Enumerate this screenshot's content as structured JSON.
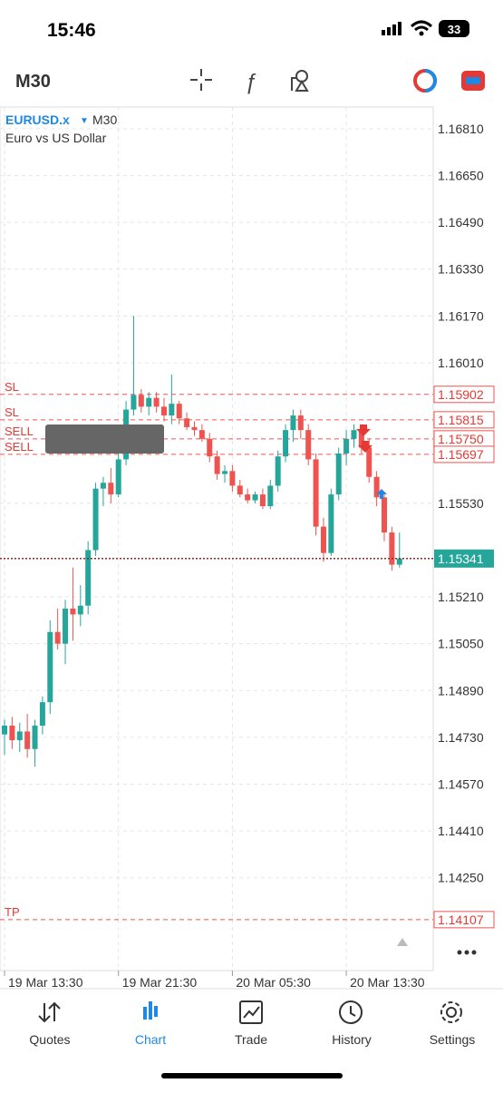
{
  "status_bar": {
    "time": "15:46",
    "battery": "33"
  },
  "toolbar": {
    "timeframe": "M30"
  },
  "chart_data": {
    "type": "candlestick",
    "symbol": "EURUSD.x",
    "timeframe": "M30",
    "description": "Euro vs US Dollar",
    "up_color": "#26a69a",
    "down_color": "#ef5350",
    "categories": [
      "19 Mar 13:30",
      null,
      null,
      null,
      null,
      null,
      null,
      null,
      null,
      null,
      null,
      null,
      null,
      null,
      null,
      "19 Mar 21:30",
      null,
      null,
      null,
      null,
      null,
      null,
      null,
      null,
      null,
      null,
      null,
      null,
      null,
      null,
      "20 Mar 05:30",
      null,
      null,
      null,
      null,
      null,
      null,
      null,
      null,
      null,
      null,
      null,
      null,
      null,
      null,
      "20 Mar 13:30",
      null,
      null,
      null,
      null,
      null,
      null,
      null
    ],
    "open": [
      1.1474,
      1.1477,
      1.1472,
      1.1475,
      1.1469,
      1.1477,
      1.1485,
      1.1509,
      1.1505,
      1.1517,
      1.1515,
      1.1518,
      1.1537,
      1.1558,
      1.156,
      1.1556,
      1.1568,
      1.1585,
      1.159,
      1.1586,
      1.1589,
      1.1586,
      1.1583,
      1.1587,
      1.1582,
      1.1579,
      1.1578,
      1.1575,
      1.1569,
      1.1563,
      1.1564,
      1.1559,
      1.1556,
      1.1554,
      1.1556,
      1.1552,
      1.1559,
      1.1569,
      1.1578,
      1.1583,
      1.1578,
      1.1568,
      1.1545,
      1.1536,
      1.1556,
      1.157,
      1.1575,
      1.1578,
      1.1572,
      1.1562,
      1.1555,
      1.1543,
      1.1532
    ],
    "high": [
      1.1479,
      1.148,
      1.1478,
      1.1481,
      1.1479,
      1.1487,
      1.1513,
      1.1517,
      1.152,
      1.1531,
      1.1525,
      1.154,
      1.156,
      1.1562,
      1.1565,
      1.1572,
      1.1588,
      1.1617,
      1.1592,
      1.1591,
      1.1591,
      1.1589,
      1.1597,
      1.1588,
      1.1584,
      1.1581,
      1.158,
      1.1577,
      1.1571,
      1.1566,
      1.1566,
      1.1561,
      1.1558,
      1.1557,
      1.1558,
      1.1561,
      1.1571,
      1.158,
      1.1585,
      1.1585,
      1.158,
      1.157,
      1.1548,
      1.1558,
      1.1572,
      1.1578,
      1.158,
      1.158,
      1.1575,
      1.1564,
      1.1557,
      1.1545,
      1.1543
    ],
    "low": [
      1.1467,
      1.1469,
      1.1468,
      1.1466,
      1.1463,
      1.1474,
      1.1481,
      1.1503,
      1.1498,
      1.1506,
      1.1511,
      1.1515,
      1.1535,
      1.1552,
      1.1553,
      1.1555,
      1.1566,
      1.1583,
      1.1584,
      1.1583,
      1.1584,
      1.1581,
      1.158,
      1.158,
      1.1578,
      1.1576,
      1.1574,
      1.1567,
      1.1561,
      1.156,
      1.1557,
      1.1555,
      1.1553,
      1.1553,
      1.1551,
      1.1551,
      1.1557,
      1.1567,
      1.1574,
      1.1575,
      1.1566,
      1.1542,
      1.1533,
      1.1535,
      1.1554,
      1.1566,
      1.1572,
      1.157,
      1.156,
      1.1552,
      1.154,
      1.153,
      1.1531
    ],
    "close": [
      1.1477,
      1.1472,
      1.1475,
      1.1469,
      1.1477,
      1.1485,
      1.1509,
      1.1505,
      1.1517,
      1.1515,
      1.1518,
      1.1537,
      1.1558,
      1.156,
      1.1556,
      1.1568,
      1.1585,
      1.159,
      1.1586,
      1.1589,
      1.1586,
      1.1583,
      1.1587,
      1.1582,
      1.1579,
      1.1578,
      1.1575,
      1.1569,
      1.1563,
      1.1564,
      1.1559,
      1.1556,
      1.1554,
      1.1556,
      1.1552,
      1.1559,
      1.1569,
      1.1578,
      1.1583,
      1.1578,
      1.1568,
      1.1545,
      1.1536,
      1.1556,
      1.157,
      1.1575,
      1.1578,
      1.1572,
      1.1562,
      1.1555,
      1.1543,
      1.1532,
      1.15341
    ],
    "ylim": [
      1.13933,
      1.16884
    ],
    "yticks": [
      {
        "value": 1.1681,
        "label": "1.16810"
      },
      {
        "value": 1.1665,
        "label": "1.16650"
      },
      {
        "value": 1.1649,
        "label": "1.16490"
      },
      {
        "value": 1.1633,
        "label": "1.16330"
      },
      {
        "value": 1.1617,
        "label": "1.16170"
      },
      {
        "value": 1.1601,
        "label": "1.16010"
      },
      {
        "value": 1.1553,
        "label": "1.15530"
      },
      {
        "value": 1.1521,
        "label": "1.15210"
      },
      {
        "value": 1.1505,
        "label": "1.15050"
      },
      {
        "value": 1.1489,
        "label": "1.14890"
      },
      {
        "value": 1.1473,
        "label": "1.14730"
      },
      {
        "value": 1.1457,
        "label": "1.14570"
      },
      {
        "value": 1.1441,
        "label": "1.14410"
      },
      {
        "value": 1.1425,
        "label": "1.14250"
      }
    ],
    "levels": [
      {
        "label": "SL",
        "value": 1.15902
      },
      {
        "label": "SL",
        "value": 1.15815
      },
      {
        "label": "SELL",
        "value": {
          "value": 1.1575,
          "label": "1.15750"
        }
      },
      {
        "label": "SELL",
        "value": 1.15697
      },
      {
        "label": "TP",
        "value": 1.14107
      }
    ],
    "current_price": 1.15341,
    "grid": true
  },
  "tabs": [
    "Quotes",
    "Chart",
    "Trade",
    "History",
    "Settings"
  ]
}
